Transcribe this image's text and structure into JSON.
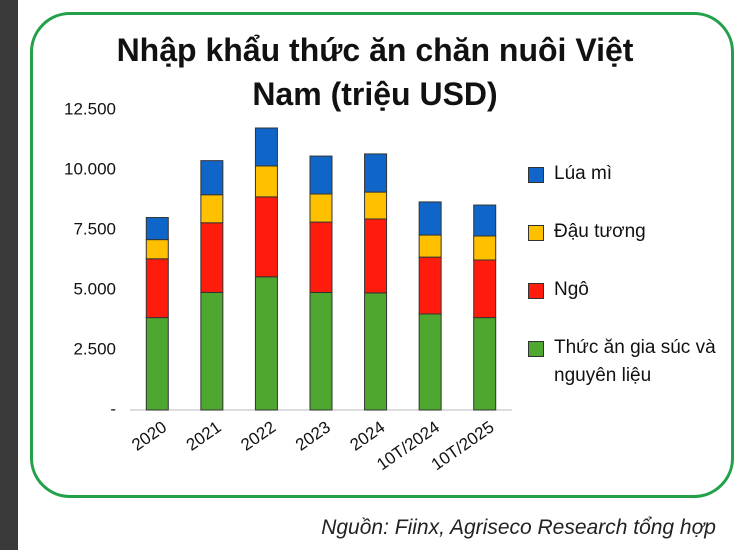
{
  "chart_data": {
    "type": "stacked_bar",
    "title": "Nhập khẩu thức ăn chăn nuôi Việt Nam (triệu USD)",
    "categories": [
      "2020",
      "2021",
      "2022",
      "2023",
      "2024",
      "10T/2024",
      "10T/2025"
    ],
    "series": [
      {
        "name": "Thức ăn gia súc và nguyên liệu",
        "color": "#4ea72e",
        "values": [
          3850,
          4900,
          5550,
          4900,
          4880,
          4000,
          3850
        ]
      },
      {
        "name": "Ngô",
        "color": "#ff1c0c",
        "values": [
          2450,
          2900,
          3330,
          2930,
          3080,
          2370,
          2400
        ]
      },
      {
        "name": "Đậu tương",
        "color": "#ffc000",
        "values": [
          800,
          1170,
          1290,
          1170,
          1120,
          920,
          1000
        ]
      },
      {
        "name": "Lúa mì",
        "color": "#0f66c8",
        "values": [
          920,
          1420,
          1580,
          1580,
          1590,
          1380,
          1290
        ]
      }
    ],
    "ylim": [
      0,
      12500
    ],
    "yticks": [
      {
        "value": 0,
        "label": "-"
      },
      {
        "value": 2500,
        "label": "2.500"
      },
      {
        "value": 5000,
        "label": "5.000"
      },
      {
        "value": 7500,
        "label": "7.500"
      },
      {
        "value": 10000,
        "label": "10.000"
      },
      {
        "value": 12500,
        "label": "12.500"
      }
    ],
    "source": "Nguồn: Fiinx, Agriseco Research tổng hợp"
  }
}
